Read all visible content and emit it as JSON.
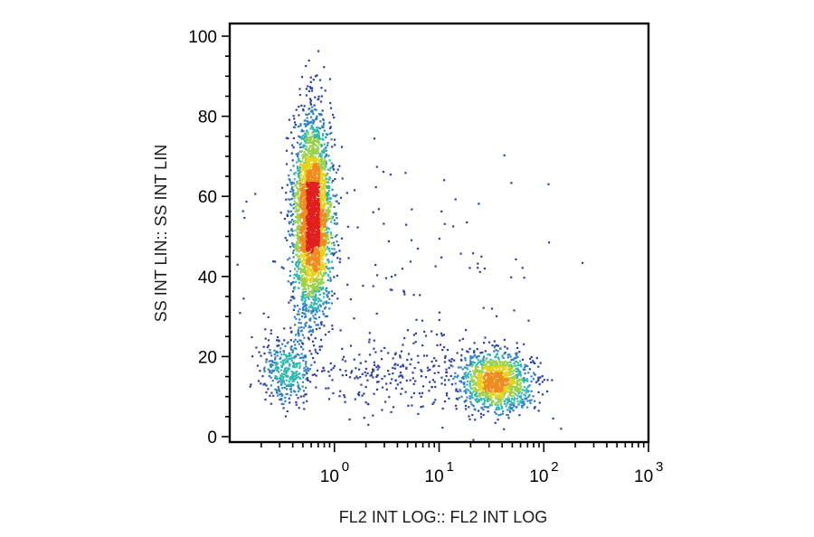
{
  "chart_data": {
    "type": "scatter",
    "style": "density-colored flow cytometry dot plot",
    "xlabel": "FL2 INT LOG:: FL2 INT LOG",
    "ylabel": "SS INT LIN:: SS INT LIN",
    "x_scale": "log",
    "xlim": [
      0.1,
      1000
    ],
    "ylim": [
      0,
      100
    ],
    "x_ticks": [
      {
        "value": 1,
        "base": "10",
        "exp": "0"
      },
      {
        "value": 10,
        "base": "10",
        "exp": "1"
      },
      {
        "value": 100,
        "base": "10",
        "exp": "2"
      },
      {
        "value": 1000,
        "base": "10",
        "exp": "3"
      }
    ],
    "y_ticks": [
      {
        "value": 0,
        "label": "0"
      },
      {
        "value": 20,
        "label": "20"
      },
      {
        "value": 40,
        "label": "40"
      },
      {
        "value": 60,
        "label": "60"
      },
      {
        "value": 80,
        "label": "80"
      },
      {
        "value": 100,
        "label": "100"
      }
    ],
    "density_colors": [
      "#2b3fa6",
      "#2f7fc8",
      "#30b7b0",
      "#9bd14a",
      "#e8d21e",
      "#f08a1c",
      "#e0201e"
    ],
    "populations": [
      {
        "x_center": 0.6,
        "y_center": 55,
        "x_spread_decades": 0.09,
        "y_spread": 12.5,
        "weight": 0.62
      },
      {
        "x_center": 0.35,
        "y_center": 17,
        "x_spread_decades": 0.12,
        "y_spread": 4,
        "weight": 0.07
      },
      {
        "x_center": 35,
        "y_center": 14,
        "x_spread_decades": 0.17,
        "y_spread": 3.5,
        "weight": 0.23
      },
      {
        "x_center": 5,
        "y_center": 16,
        "x_spread_decades": 0.45,
        "y_spread": 4.5,
        "weight": 0.05
      },
      {
        "x_center": 3,
        "y_center": 35,
        "x_spread_decades": 0.8,
        "y_spread": 20,
        "weight": 0.03
      }
    ]
  }
}
